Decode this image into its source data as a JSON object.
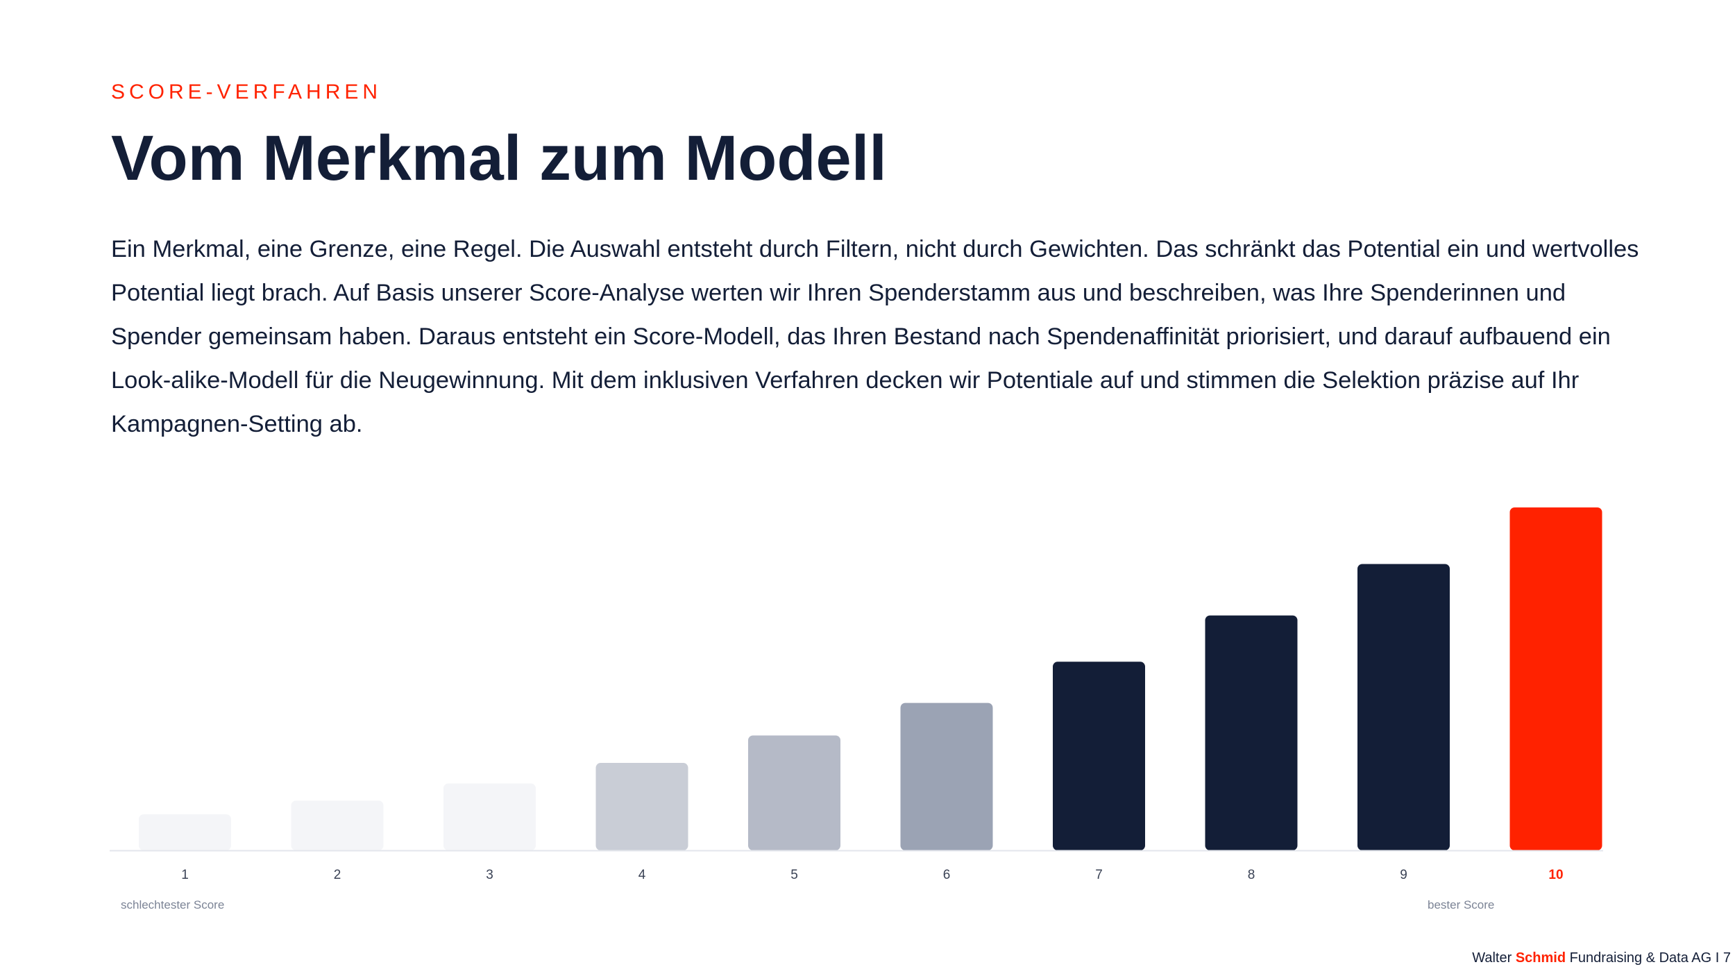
{
  "header": {
    "kicker": "SCORE-VERFAHREN",
    "title": "Vom Merkmal zum Modell",
    "body": "Ein Merkmal, eine Grenze, eine Regel. Die Auswahl entsteht durch Filtern, nicht durch Gewichten. Das schränkt das Potential ein und wertvolles Potential liegt brach. Auf Basis unserer Score-Analyse werten wir Ihren Spenderstamm aus und beschreiben, was Ihre Spenderinnen und Spender gemeinsam haben. Daraus entsteht ein Score-Modell, das Ihren Bestand nach Spendenaffinität priorisiert, und darauf aufbauend ein Look-alike-Modell für die Neugewinnung. Mit dem inklusiven Verfahren decken wir Potentiale auf und stimmen die Selektion präzise auf Ihr Kampagnen-Setting ab."
  },
  "chart_data": {
    "type": "bar",
    "categories": [
      "1",
      "2",
      "3",
      "4",
      "5",
      "6",
      "7",
      "8",
      "9",
      "10"
    ],
    "values": [
      10.5,
      14.5,
      19.5,
      25.5,
      33.5,
      43,
      55,
      68.5,
      83.5,
      100
    ],
    "ylim": [
      0,
      100
    ],
    "grid": false,
    "bar_colors": [
      "#f4f5f8",
      "#f4f5f8",
      "#f4f5f8",
      "#c9cdd6",
      "#b5bac7",
      "#9ba3b4",
      "#131e37",
      "#131e37",
      "#131e37",
      "#ff2200"
    ],
    "highlight_label_color": "#ff2200",
    "annotations": {
      "low": "schlechtester Score",
      "high": "bester Score"
    }
  },
  "footer": {
    "name_prefix": "Walter ",
    "name_brand": "Schmid",
    "name_suffix": " Fundraising & Data AG I 7"
  },
  "colors": {
    "accent": "#ff2200",
    "navy": "#131e37"
  }
}
